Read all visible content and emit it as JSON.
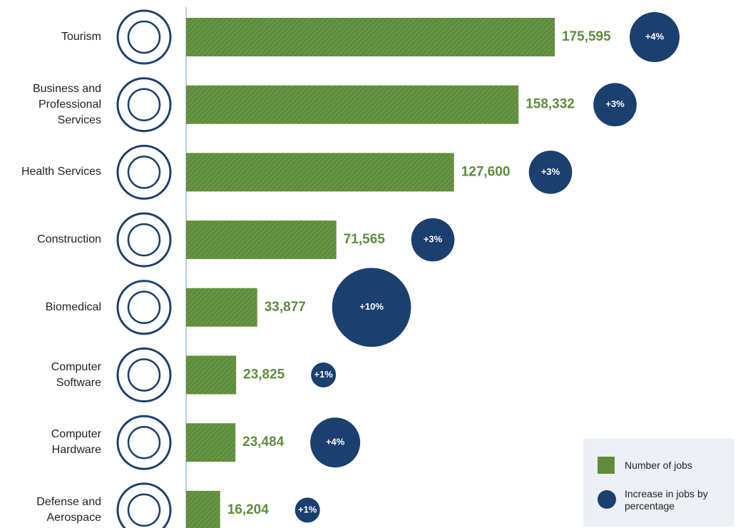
{
  "chart_data": {
    "type": "bar-bubble",
    "categories": [
      "Tourism",
      "Business and Professional Services",
      "Health Services",
      "Construction",
      "Biomedical",
      "Computer Software",
      "Computer Hardware",
      "Defense and Aerospace"
    ],
    "series": [
      {
        "name": "Number of jobs",
        "color": "#5e8c3c",
        "values": [
          175595,
          158332,
          127600,
          71565,
          33877,
          23825,
          23484,
          16204
        ],
        "value_labels": [
          "175,595",
          "158,332",
          "127,600",
          "71,565",
          "33,877",
          "23,825",
          "23,484",
          "16,204"
        ]
      },
      {
        "name": "Increase in jobs by percentage",
        "color": "#1b3f6e",
        "values": [
          4,
          3,
          3,
          3,
          10,
          1,
          4,
          1
        ],
        "value_labels": [
          "+4%",
          "+3%",
          "+3%",
          "+3%",
          "+10%",
          "+1%",
          "+4%",
          "+1%"
        ]
      }
    ],
    "xlim": [
      0,
      180000
    ]
  }
}
